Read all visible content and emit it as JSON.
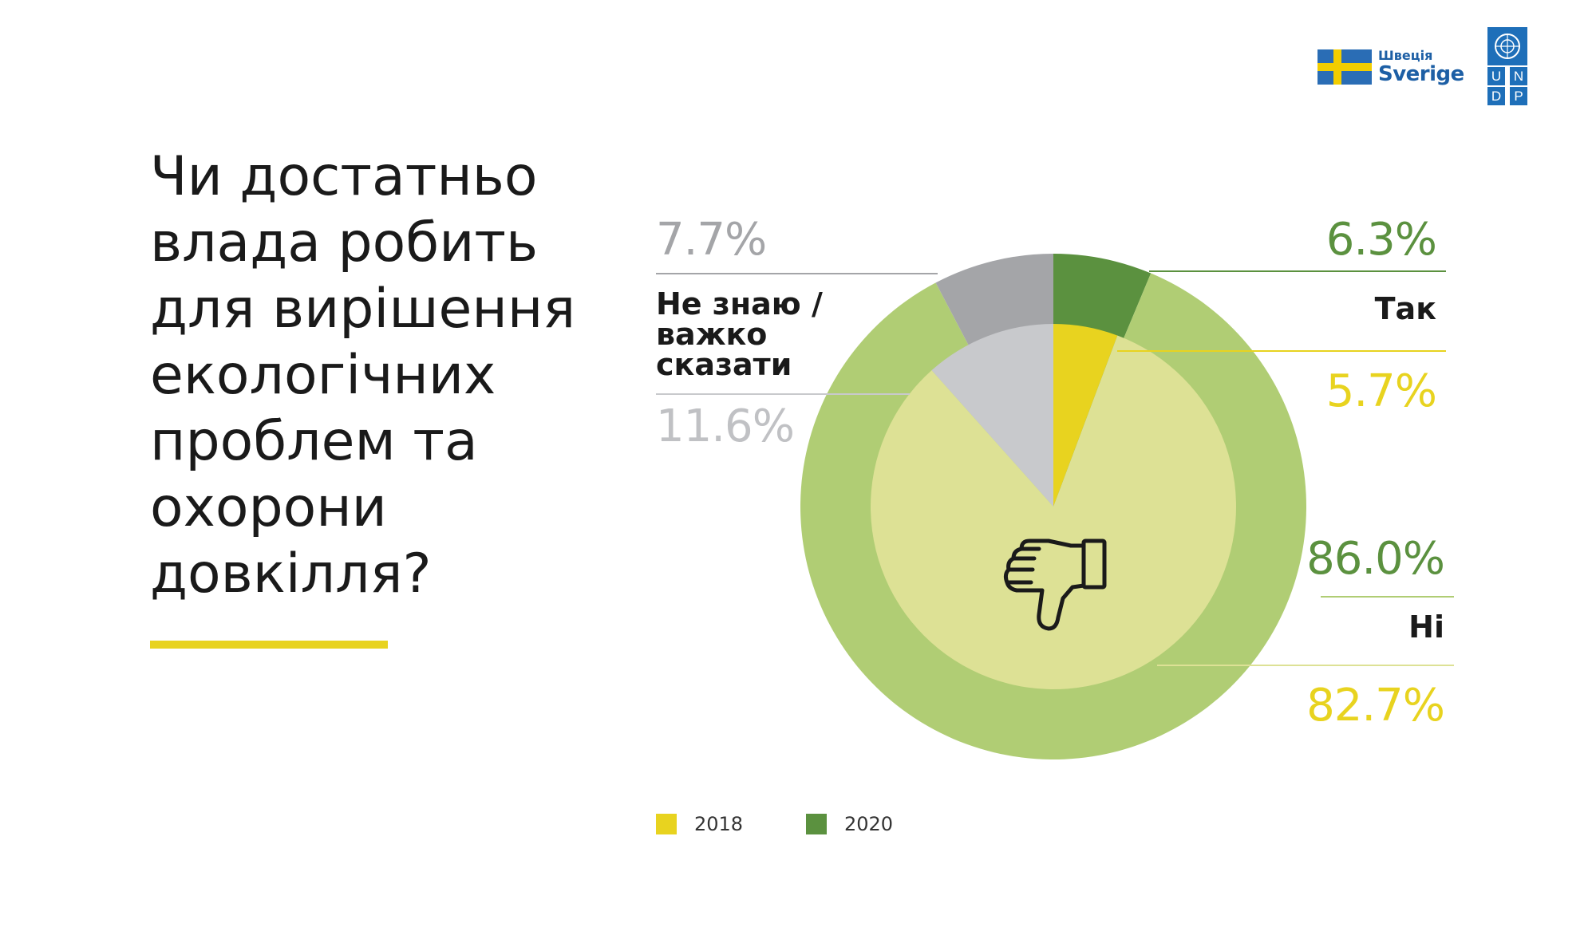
{
  "header": {
    "title": "Чи достатньо влада робить для вирішення екологічних проблем та охорони довкілля?"
  },
  "logos": {
    "sweden_small": "Швеція",
    "sweden_big": "Sverige",
    "undp_letters": [
      "U",
      "N",
      "D",
      "P"
    ]
  },
  "colors": {
    "yes_2018": "#e8d31f",
    "yes_2020": "#5b913f",
    "no_2018": "#dde195",
    "no_2020": "#b0cd74",
    "dk_2018": "#c8c9cc",
    "dk_2020": "#a4a5a8",
    "label_gray": "#c0c1c4"
  },
  "chart_data": {
    "type": "pie",
    "subtype": "nested-donut",
    "categories": [
      "Так",
      "Ні",
      "Не знаю / важко сказати"
    ],
    "series": [
      {
        "name": "2018",
        "ring": "inner",
        "values": [
          5.7,
          82.7,
          11.6
        ],
        "labels": [
          "5.7%",
          "82.7%",
          "11.6%"
        ]
      },
      {
        "name": "2020",
        "ring": "outer",
        "values": [
          6.3,
          86.0,
          7.7
        ],
        "labels": [
          "6.3%",
          "86.0%",
          "7.7%"
        ]
      }
    ],
    "legend": [
      "2018",
      "2020"
    ],
    "legend_placement": "bottom",
    "center_icon": "thumbs-down-icon"
  }
}
